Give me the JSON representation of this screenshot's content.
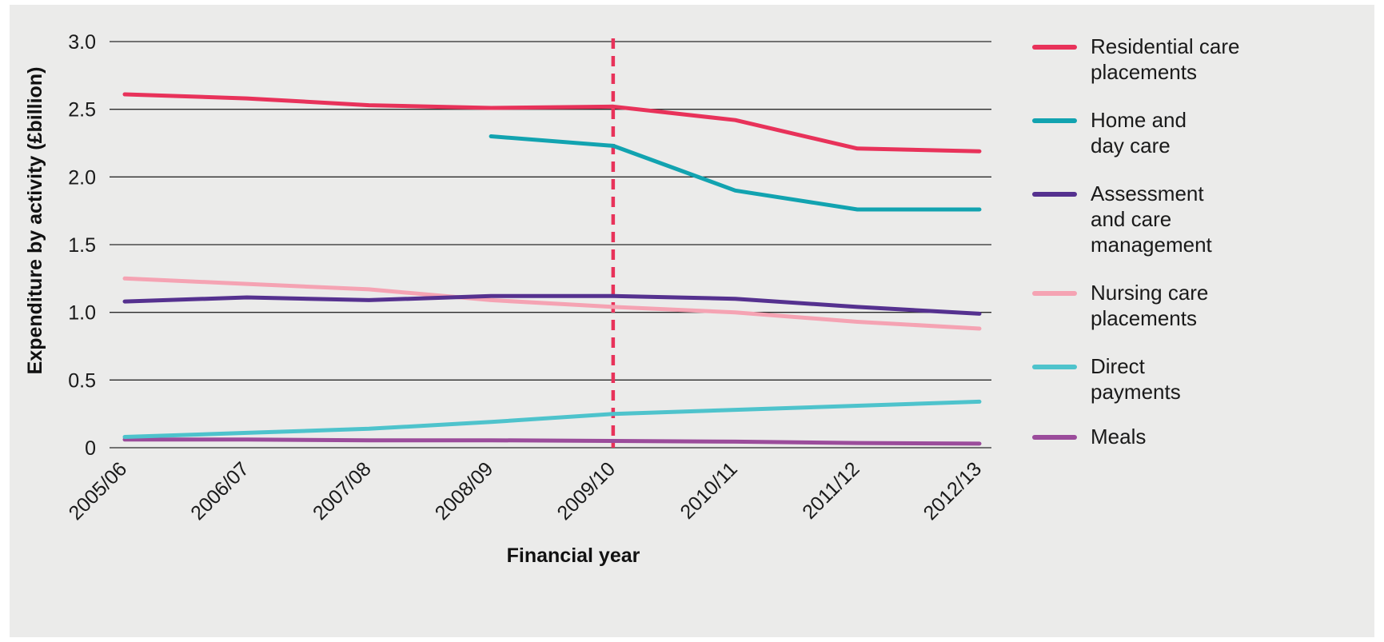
{
  "chart_data": {
    "type": "line",
    "title": "",
    "xlabel": "Financial year",
    "ylabel": "Expenditure by activity (£billion)",
    "ylim": [
      0,
      3.0
    ],
    "yticks": [
      {
        "value": 0,
        "label": "0"
      },
      {
        "value": 0.5,
        "label": "0.5"
      },
      {
        "value": 1.0,
        "label": "1.0"
      },
      {
        "value": 1.5,
        "label": "1.5"
      },
      {
        "value": 2.0,
        "label": "2.0"
      },
      {
        "value": 2.5,
        "label": "2.5"
      },
      {
        "value": 3.0,
        "label": "3.0"
      }
    ],
    "categories": [
      "2005/06",
      "2006/07",
      "2007/08",
      "2008/09",
      "2009/10",
      "2010/11",
      "2011/12",
      "2012/13"
    ],
    "grid": true,
    "legend_position": "right",
    "marker_line": {
      "category": "2009/10",
      "style": "dashed",
      "color": "#e8325a"
    },
    "series": [
      {
        "name": "Residential care placements",
        "legend_lines": [
          "Residential care",
          "placements"
        ],
        "color": "#e8325a",
        "values": [
          2.61,
          2.58,
          2.53,
          2.51,
          2.52,
          2.42,
          2.21,
          2.19
        ]
      },
      {
        "name": "Home and day care",
        "legend_lines": [
          "Home and",
          "day care"
        ],
        "color": "#12a3b0",
        "values": [
          null,
          null,
          null,
          2.3,
          2.23,
          1.9,
          1.76,
          1.76
        ]
      },
      {
        "name": "Assessment and care management",
        "legend_lines": [
          "Assessment",
          "and care",
          "management"
        ],
        "color": "#55318f",
        "values": [
          1.08,
          1.11,
          1.09,
          1.12,
          1.12,
          1.1,
          1.04,
          0.99
        ]
      },
      {
        "name": "Nursing care placements",
        "legend_lines": [
          "Nursing care",
          "placements"
        ],
        "color": "#f5a3b3",
        "values": [
          1.25,
          1.21,
          1.17,
          1.09,
          1.04,
          1.0,
          0.93,
          0.88
        ]
      },
      {
        "name": "Direct payments",
        "legend_lines": [
          "Direct",
          "payments"
        ],
        "color": "#4ec3cc",
        "values": [
          0.08,
          0.11,
          0.14,
          0.19,
          0.25,
          0.28,
          0.31,
          0.34
        ]
      },
      {
        "name": "Meals",
        "legend_lines": [
          "Meals"
        ],
        "color": "#9b4c9b",
        "values": [
          0.06,
          0.06,
          0.055,
          0.055,
          0.05,
          0.045,
          0.035,
          0.03
        ]
      }
    ]
  }
}
